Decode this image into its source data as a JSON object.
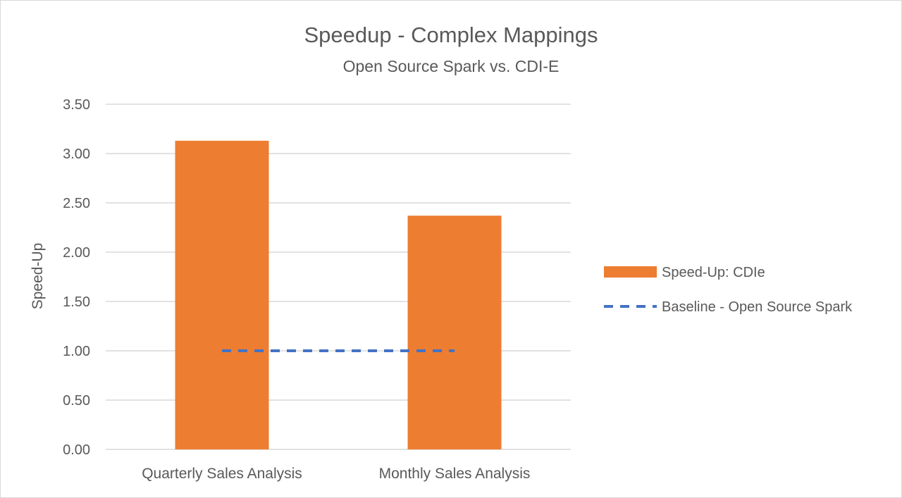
{
  "chart_data": {
    "type": "bar",
    "title": "Speedup - Complex Mappings",
    "subtitle": "Open Source Spark vs. CDI-E",
    "ylabel": "Speed-Up",
    "xlabel": "",
    "categories": [
      "Quarterly Sales Analysis",
      "Monthly Sales Analysis"
    ],
    "series": [
      {
        "name": "Speed-Up: CDIe",
        "type": "bar",
        "values": [
          3.13,
          2.37
        ],
        "color": "#ED7D31"
      },
      {
        "name": "Baseline - Open Source Spark",
        "type": "line",
        "style": "dashed",
        "values": [
          1.0,
          1.0
        ],
        "color": "#4472C4"
      }
    ],
    "ylim": [
      0,
      3.5
    ],
    "yticks": [
      "0.00",
      "0.50",
      "1.00",
      "1.50",
      "2.00",
      "2.50",
      "3.00",
      "3.50"
    ],
    "grid": true,
    "legend": "right"
  }
}
